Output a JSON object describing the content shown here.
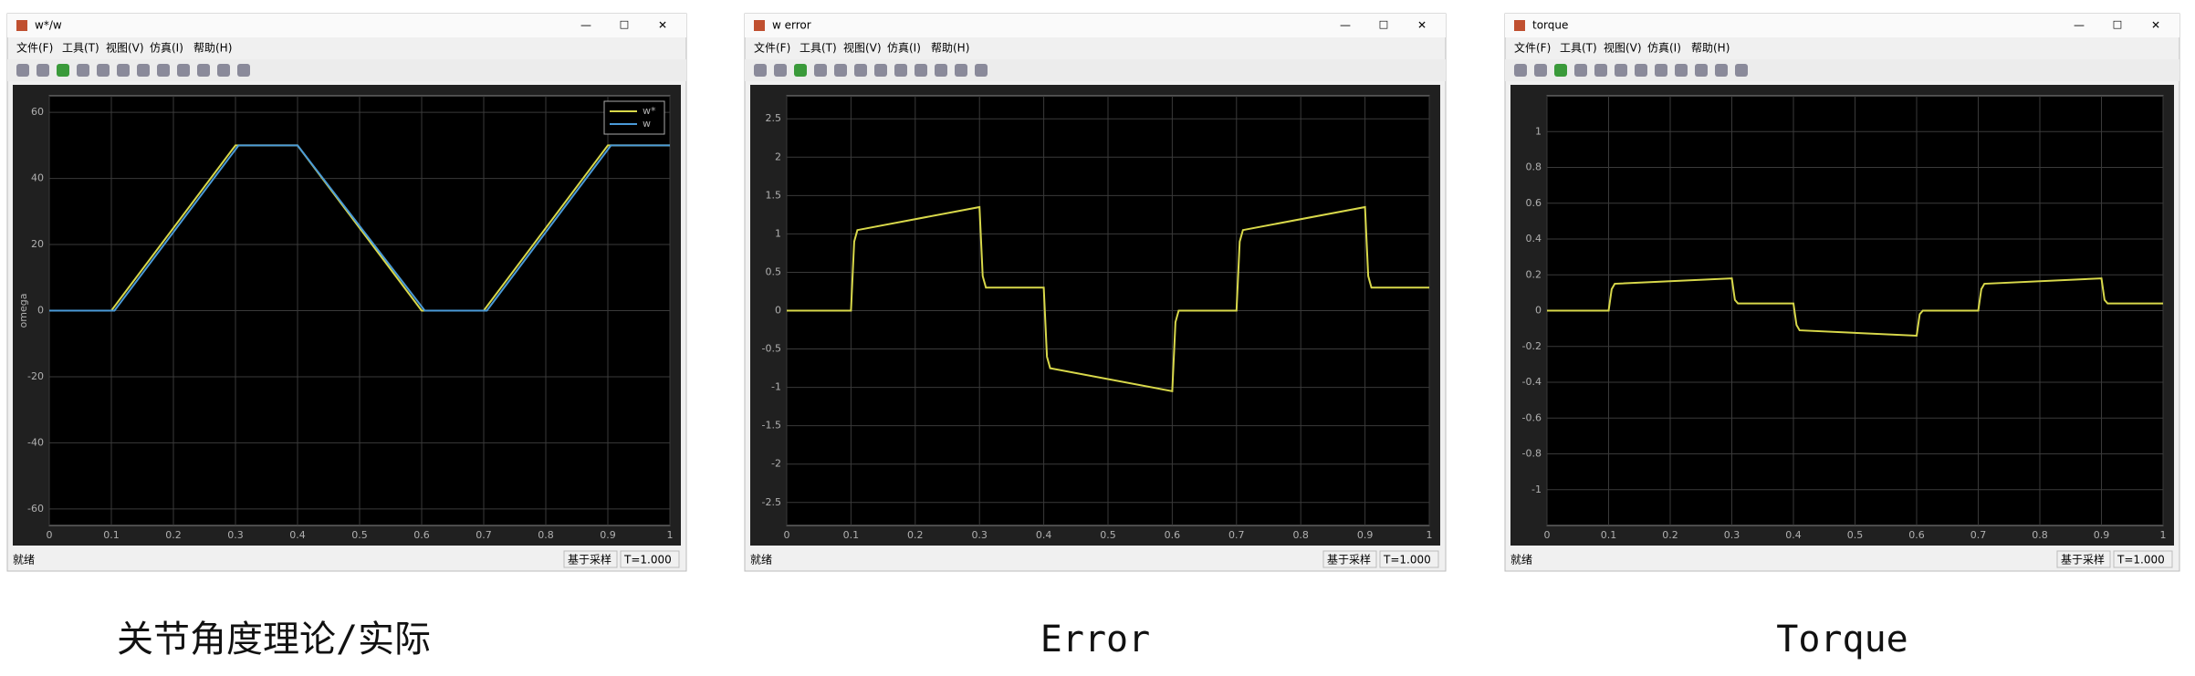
{
  "chart_data": [
    {
      "type": "line",
      "title": "w*/w",
      "ylabel": "omega",
      "grid": true,
      "legend": "upper right",
      "xlim": [
        0,
        1
      ],
      "ylim": [
        -65,
        65
      ],
      "xticks": [
        0,
        0.1,
        0.2,
        0.3,
        0.4,
        0.5,
        0.6,
        0.7,
        0.8,
        0.9,
        1
      ],
      "yticks": [
        -60,
        -40,
        -20,
        0,
        20,
        40,
        60
      ],
      "caption": "关节角度理论/实际",
      "series": [
        {
          "name": "w*",
          "color": "#d8d84a",
          "x": [
            0,
            0.1,
            0.3,
            0.4,
            0.6,
            0.7,
            0.9,
            1
          ],
          "values": [
            0,
            0,
            50,
            50,
            0,
            0,
            50,
            50
          ]
        },
        {
          "name": "w",
          "color": "#4a9ad8",
          "x": [
            0,
            0.105,
            0.305,
            0.4,
            0.605,
            0.705,
            0.905,
            1
          ],
          "values": [
            0,
            0,
            50,
            50,
            0,
            0,
            50,
            50
          ]
        }
      ]
    },
    {
      "type": "line",
      "title": "w error",
      "grid": true,
      "xlim": [
        0,
        1
      ],
      "ylim": [
        -2.8,
        2.8
      ],
      "xticks": [
        0,
        0.1,
        0.2,
        0.3,
        0.4,
        0.5,
        0.6,
        0.7,
        0.8,
        0.9,
        1
      ],
      "yticks": [
        -2.5,
        -2,
        -1.5,
        -1,
        -0.5,
        0,
        0.5,
        1,
        1.5,
        2,
        2.5
      ],
      "caption": "Error",
      "series": [
        {
          "color": "#d8d84a",
          "x": [
            0,
            0.1,
            0.105,
            0.11,
            0.3,
            0.305,
            0.31,
            0.4,
            0.405,
            0.41,
            0.6,
            0.605,
            0.61,
            0.7,
            0.705,
            0.71,
            0.9,
            0.905,
            0.91,
            1
          ],
          "values": [
            0,
            0,
            0.9,
            1.05,
            1.35,
            0.45,
            0.3,
            0.3,
            -0.6,
            -0.75,
            -1.05,
            -0.15,
            0,
            0,
            0.9,
            1.05,
            1.35,
            0.45,
            0.3,
            0.3
          ]
        }
      ]
    },
    {
      "type": "line",
      "title": "torque",
      "grid": true,
      "xlim": [
        0,
        1
      ],
      "ylim": [
        -1.2,
        1.2
      ],
      "xticks": [
        0,
        0.1,
        0.2,
        0.3,
        0.4,
        0.5,
        0.6,
        0.7,
        0.8,
        0.9,
        1
      ],
      "yticks": [
        -1,
        -0.8,
        -0.6,
        -0.4,
        -0.2,
        0,
        0.2,
        0.4,
        0.6,
        0.8,
        1
      ],
      "caption": "Torque",
      "series": [
        {
          "color": "#d8d84a",
          "x": [
            0,
            0.1,
            0.105,
            0.11,
            0.3,
            0.305,
            0.31,
            0.4,
            0.405,
            0.41,
            0.6,
            0.605,
            0.61,
            0.7,
            0.705,
            0.71,
            0.9,
            0.905,
            0.91,
            1
          ],
          "values": [
            0,
            0,
            0.12,
            0.15,
            0.18,
            0.06,
            0.04,
            0.04,
            -0.08,
            -0.11,
            -0.14,
            -0.02,
            0,
            0,
            0.12,
            0.15,
            0.18,
            0.06,
            0.04,
            0.04
          ]
        }
      ]
    }
  ],
  "menu": [
    "文件(F)",
    "工具(T)",
    "视图(V)",
    "仿真(I)",
    "帮助(H)"
  ],
  "status": [
    "就绪",
    "基于采样",
    "T=1.000"
  ]
}
